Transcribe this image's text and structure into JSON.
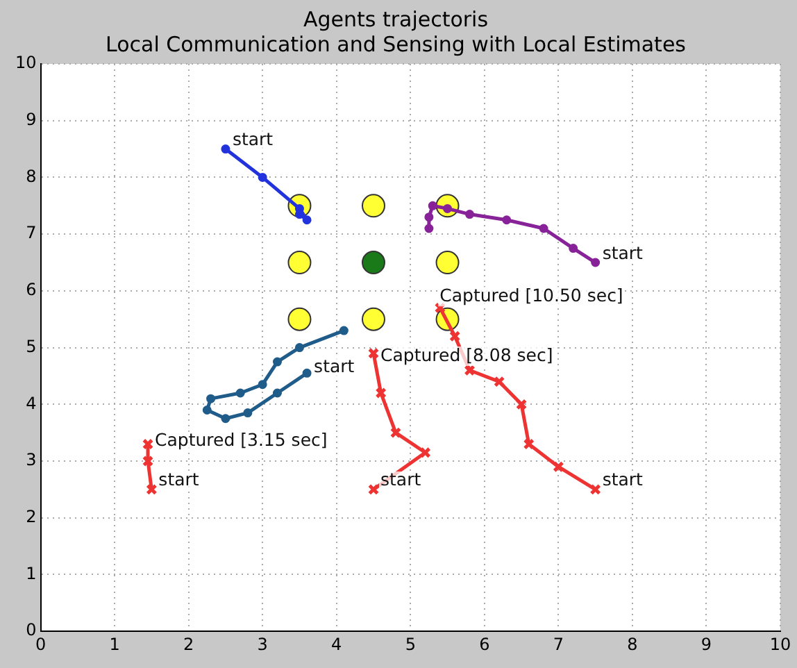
{
  "chart_data": {
    "type": "line",
    "title": "Agents trajectoris\nLocal Communication and Sensing with Local Estimates",
    "xlim": [
      0,
      10
    ],
    "ylim": [
      0,
      10
    ],
    "xticks": [
      0,
      1,
      2,
      3,
      4,
      5,
      6,
      7,
      8,
      9,
      10
    ],
    "yticks": [
      0,
      1,
      2,
      3,
      4,
      5,
      6,
      7,
      8,
      9,
      10
    ],
    "grid": true,
    "legend": false,
    "line_style": "solid",
    "series": [
      {
        "marker": "circle",
        "color": "#2233dd",
        "x": [
          2.5,
          3.0,
          3.5,
          3.6,
          3.5
        ],
        "values": [
          8.5,
          8.0,
          7.45,
          7.25,
          7.35
        ]
      },
      {
        "marker": "circle",
        "color": "#882299",
        "x": [
          7.5,
          7.2,
          6.8,
          6.3,
          5.8,
          5.5,
          5.3,
          5.25,
          5.25
        ],
        "values": [
          6.5,
          6.75,
          7.1,
          7.25,
          7.35,
          7.45,
          7.5,
          7.3,
          7.1
        ]
      },
      {
        "marker": "circle",
        "color": "#1f5c8a",
        "x": [
          3.6,
          3.2,
          2.8,
          2.5,
          2.25,
          2.3,
          2.7,
          3.0,
          3.2,
          3.5,
          4.1
        ],
        "values": [
          4.55,
          4.2,
          3.85,
          3.75,
          3.9,
          4.1,
          4.2,
          4.35,
          4.75,
          5.0,
          5.3
        ]
      },
      {
        "marker": "cross",
        "color": "#ee3333",
        "x": [
          1.5,
          1.45,
          1.45
        ],
        "values": [
          2.5,
          3.0,
          3.3
        ]
      },
      {
        "marker": "cross",
        "color": "#ee3333",
        "x": [
          4.5,
          5.2,
          4.8,
          4.6,
          4.5
        ],
        "values": [
          2.5,
          3.15,
          3.5,
          4.2,
          4.9
        ]
      },
      {
        "marker": "cross",
        "color": "#ee3333",
        "x": [
          7.5,
          7.0,
          6.6,
          6.5,
          6.2,
          5.8,
          5.6,
          5.4
        ],
        "values": [
          2.5,
          2.9,
          3.3,
          4.0,
          4.4,
          4.6,
          5.2,
          5.7
        ]
      },
      {
        "type": "scatter",
        "marker": "circle",
        "color": "#ffff33",
        "x": [
          3.5,
          4.5,
          5.5,
          3.5,
          5.5,
          3.5,
          4.5,
          5.5
        ],
        "values": [
          7.5,
          7.5,
          7.5,
          6.5,
          6.5,
          5.5,
          5.5,
          5.5
        ]
      },
      {
        "type": "scatter",
        "marker": "circle",
        "color": "#1a7a1a",
        "x": [
          4.5
        ],
        "values": [
          6.5
        ]
      }
    ],
    "annotations": [
      {
        "text": "start",
        "x": 2.5,
        "y": 8.5
      },
      {
        "text": "start",
        "x": 7.5,
        "y": 6.5
      },
      {
        "text": "start",
        "x": 3.6,
        "y": 4.5
      },
      {
        "text": "start",
        "x": 1.5,
        "y": 2.5
      },
      {
        "text": "start",
        "x": 4.5,
        "y": 2.5
      },
      {
        "text": "start",
        "x": 7.5,
        "y": 2.5
      },
      {
        "text": "Captured [3.15 sec]",
        "x": 1.45,
        "y": 3.2
      },
      {
        "text": "Captured [8.08 sec]",
        "x": 4.5,
        "y": 4.7
      },
      {
        "text": "Captured [10.50 sec]",
        "x": 5.3,
        "y": 5.75
      }
    ]
  }
}
